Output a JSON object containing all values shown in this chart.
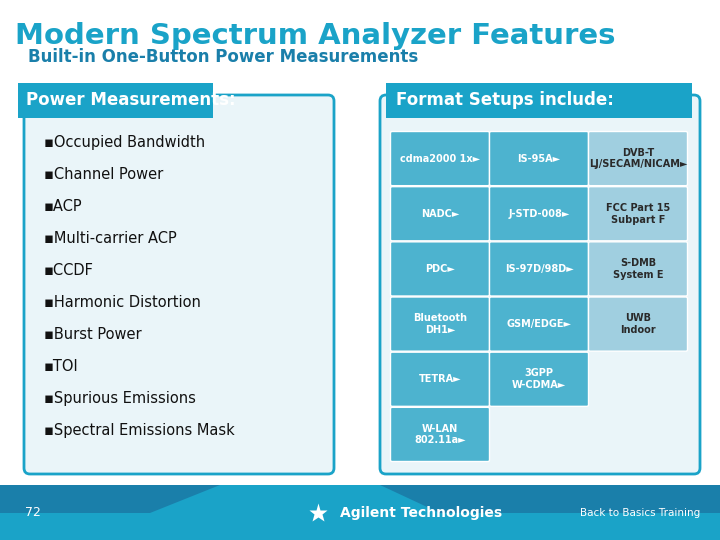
{
  "title": "Modern Spectrum Analyzer Features",
  "subtitle": "Built-in One-Button Power Measurements",
  "title_color": "#1aa3c8",
  "subtitle_color": "#1a7faa",
  "bg_color": "#ffffff",
  "footer_bg": "#1aa3c8",
  "footer_dark_bg": "#1a7faa",
  "footer_text": "Agilent Technologies",
  "footer_page": "72",
  "footer_right": "Back to Basics Training",
  "power_header": "Power Measurements:",
  "power_header_bg": "#1aa3c8",
  "power_header_text_color": "#ffffff",
  "power_box_bg": "#eaf5f9",
  "power_box_border": "#1aa3c8",
  "bullet_items": [
    "Occupied Bandwidth",
    "Channel Power",
    "ACP",
    "Multi-carrier ACP",
    "CCDF",
    "Harmonic Distortion",
    "Burst Power",
    "TOI",
    "Spurious Emissions",
    "Spectral Emissions Mask"
  ],
  "format_header": "Format Setups include:",
  "format_header_bg": "#1aa3c8",
  "format_header_text_color": "#ffffff",
  "format_box_bg": "#eaf5f9",
  "format_box_border": "#1aa3c8",
  "grid_cells": [
    {
      "row": 0,
      "col": 0,
      "text": "cdma2000 1x►",
      "bg": "#4db3cf"
    },
    {
      "row": 0,
      "col": 1,
      "text": "IS-95A►",
      "bg": "#4db3cf"
    },
    {
      "row": 0,
      "col": 2,
      "text": "DVB-T\nLJ/SECAM/NICAM►",
      "bg": "#a0cfe0"
    },
    {
      "row": 1,
      "col": 0,
      "text": "NADC►",
      "bg": "#4db3cf"
    },
    {
      "row": 1,
      "col": 1,
      "text": "J-STD-008►",
      "bg": "#4db3cf"
    },
    {
      "row": 1,
      "col": 2,
      "text": "FCC Part 15\nSubpart F",
      "bg": "#a0cfe0"
    },
    {
      "row": 2,
      "col": 0,
      "text": "PDC►",
      "bg": "#4db3cf"
    },
    {
      "row": 2,
      "col": 1,
      "text": "IS-97D/98D►",
      "bg": "#4db3cf"
    },
    {
      "row": 2,
      "col": 2,
      "text": "S-DMB\nSystem E",
      "bg": "#a0cfe0"
    },
    {
      "row": 3,
      "col": 0,
      "text": "Bluetooth\nDH1►",
      "bg": "#4db3cf"
    },
    {
      "row": 3,
      "col": 1,
      "text": "GSM/EDGE►",
      "bg": "#4db3cf"
    },
    {
      "row": 3,
      "col": 2,
      "text": "UWB\nIndoor",
      "bg": "#a0cfe0"
    },
    {
      "row": 4,
      "col": 0,
      "text": "TETRA►",
      "bg": "#4db3cf"
    },
    {
      "row": 4,
      "col": 1,
      "text": "3GPP\nW-CDMA►",
      "bg": "#4db3cf"
    },
    {
      "row": 4,
      "col": 2,
      "text": "",
      "bg": "#ffffff"
    },
    {
      "row": 5,
      "col": 0,
      "text": "W-LAN\n802.11a►",
      "bg": "#4db3cf"
    },
    {
      "row": 5,
      "col": 1,
      "text": "",
      "bg": "#ffffff"
    },
    {
      "row": 5,
      "col": 2,
      "text": "",
      "bg": "#ffffff"
    }
  ]
}
